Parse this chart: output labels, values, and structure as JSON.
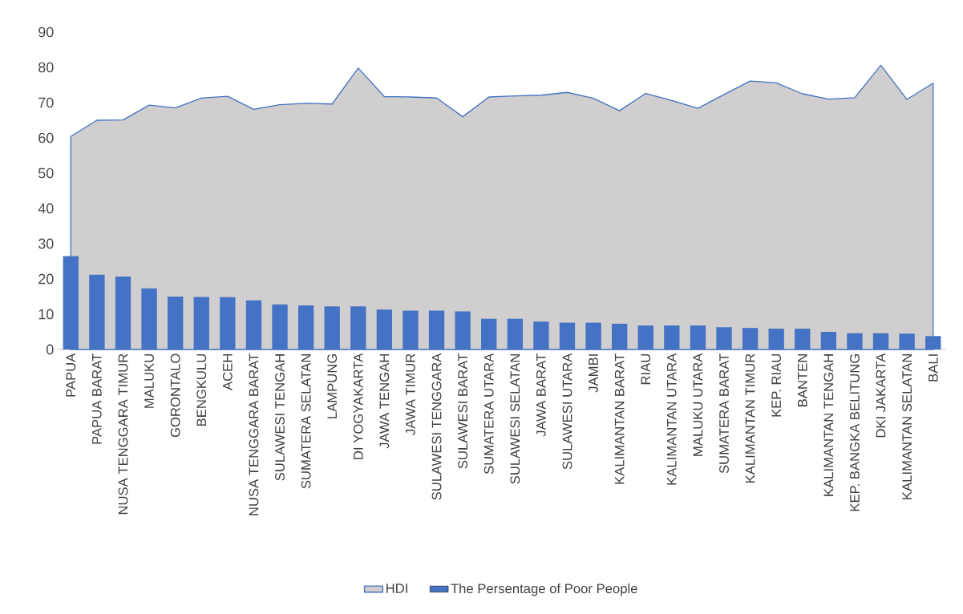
{
  "chart_data": {
    "type": "bar",
    "categories": [
      "PAPUA",
      "PAPUA BARAT",
      "NUSA TENGGARA TIMUR",
      "MALUKU",
      "GORONTALO",
      "BENGKULU",
      "ACEH",
      "NUSA TENGGARA BARAT",
      "SULAWESI TENGAH",
      "SUMATERA SELATAN",
      "LAMPUNG",
      "DI YOGYAKARTA",
      "JAWA TENGAH",
      "JAWA TIMUR",
      "SULAWESI TENGGARA",
      "SULAWESI BARAT",
      "SUMATERA UTARA",
      "SULAWESI SELATAN",
      "JAWA BARAT",
      "SULAWESI UTARA",
      "JAMBI",
      "KALIMANTAN BARAT",
      "RIAU",
      "KALIMANTAN UTARA",
      "MALUKU UTARA",
      "SUMATERA BARAT",
      "KALIMANTAN TIMUR",
      "KEP. RIAU",
      "BANTEN",
      "KALIMANTAN TENGAH",
      "KEP. BANGKA BELITUNG",
      "DKI JAKARTA",
      "KALIMANTAN SELATAN",
      "BALI"
    ],
    "series": [
      {
        "name": "HDI",
        "type": "area",
        "color": "#d0cece",
        "values": [
          60.4,
          65.0,
          65.1,
          69.3,
          68.5,
          71.3,
          71.8,
          68.1,
          69.4,
          69.8,
          69.6,
          79.8,
          71.7,
          71.6,
          71.3,
          66.0,
          71.6,
          71.9,
          72.1,
          72.9,
          71.2,
          67.7,
          72.6,
          70.6,
          68.4,
          72.3,
          76.1,
          75.6,
          72.5,
          71.0,
          71.4,
          80.6,
          70.9,
          75.5
        ]
      },
      {
        "name": "The Persentage of Poor People",
        "color": "#4472c4",
        "values": [
          26.5,
          21.2,
          20.7,
          17.3,
          15.0,
          14.9,
          14.8,
          13.9,
          12.8,
          12.5,
          12.2,
          12.2,
          11.3,
          11.0,
          11.0,
          10.8,
          8.7,
          8.7,
          7.9,
          7.6,
          7.6,
          7.3,
          6.8,
          6.8,
          6.8,
          6.3,
          6.1,
          5.9,
          5.9,
          5.0,
          4.6,
          4.6,
          4.5,
          3.8
        ]
      }
    ],
    "ylim": [
      0,
      90
    ],
    "yticks": [
      0,
      10,
      20,
      30,
      40,
      50,
      60,
      70,
      80,
      90
    ],
    "legend": "bottom"
  }
}
